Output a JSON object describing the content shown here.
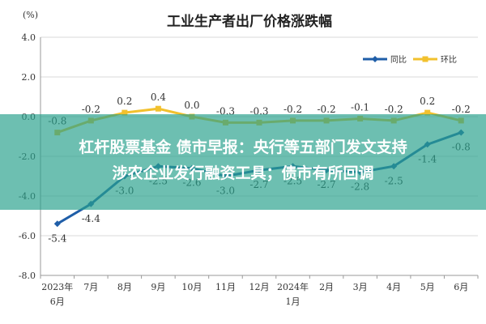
{
  "chart_data": {
    "type": "line",
    "title": "工业生产者出厂价格涨跌幅",
    "unit_label": "(%)",
    "ylim": [
      -8.0,
      4.0
    ],
    "yticks": [
      "4.0",
      "2.0",
      "0.0",
      "-2.0",
      "-4.0",
      "-6.0",
      "-8.0"
    ],
    "categories": [
      [
        "2023年",
        "6月"
      ],
      [
        "7月"
      ],
      [
        "8月"
      ],
      [
        "9月"
      ],
      [
        "10月"
      ],
      [
        "11月"
      ],
      [
        "12月"
      ],
      [
        "2024年",
        "1月"
      ],
      [
        "2月"
      ],
      [
        "3月"
      ],
      [
        "4月"
      ],
      [
        "5月"
      ],
      [
        "6月"
      ]
    ],
    "series": [
      {
        "name": "同比",
        "color": "#1f5ea8",
        "marker": "diamond",
        "values": [
          -5.4,
          -4.4,
          -3.0,
          -2.5,
          -2.6,
          -3.0,
          -2.7,
          -2.5,
          -2.7,
          -2.8,
          -2.5,
          -1.4,
          -0.8
        ]
      },
      {
        "name": "环比",
        "color": "#f2c12e",
        "marker": "square",
        "values": [
          -0.8,
          -0.2,
          0.2,
          0.4,
          0.0,
          -0.3,
          -0.3,
          -0.2,
          -0.2,
          -0.1,
          -0.2,
          0.2,
          -0.2
        ]
      }
    ],
    "legend_position": "top-right",
    "grid": true
  },
  "overlay": {
    "line1": "杠杆股票基金 债市早报：央行等五部门发文支持",
    "line2": "涉农企业发行融资工具；债市有所回调"
  }
}
